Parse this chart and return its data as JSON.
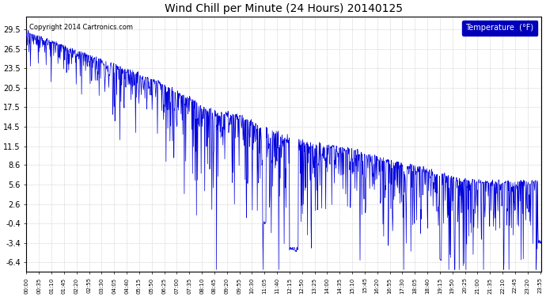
{
  "title": "Wind Chill per Minute (24 Hours) 20140125",
  "copyright_text": "Copyright 2014 Cartronics.com",
  "line_color": "#0000dd",
  "background_color": "#ffffff",
  "grid_color": "#cccccc",
  "yticks": [
    29.5,
    26.5,
    23.5,
    20.5,
    17.5,
    14.5,
    11.5,
    8.6,
    5.6,
    2.6,
    -0.4,
    -3.4,
    -6.4
  ],
  "ylim": [
    -7.8,
    31.5
  ],
  "legend_label": "Temperature  (°F)",
  "legend_bg": "#0000bb",
  "legend_fg": "#ffffff",
  "figsize": [
    6.9,
    3.75
  ],
  "dpi": 100,
  "xtick_step": 35
}
